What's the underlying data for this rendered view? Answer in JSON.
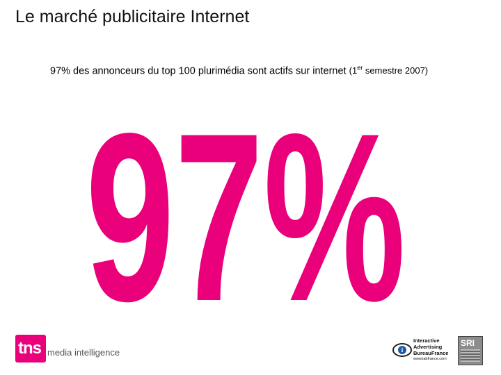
{
  "slide": {
    "title": "Le marché publicitaire Internet",
    "subtitle_main": "97% des annonceurs du top 100 plurimédia sont actifs sur internet",
    "subtitle_period_open": "(1",
    "subtitle_period_sup": "er",
    "subtitle_period_close": " semestre 2007)",
    "big_figure": "97%",
    "accent_color": "#e9007a"
  },
  "logos": {
    "tns_mark": "tns",
    "tns_text": "media intelligence",
    "iab_line1": "Interactive",
    "iab_line2": "Advertising",
    "iab_line3": "BureauFrance",
    "iab_line4": "www.iabfrance.com",
    "sri_text": "SRI"
  }
}
